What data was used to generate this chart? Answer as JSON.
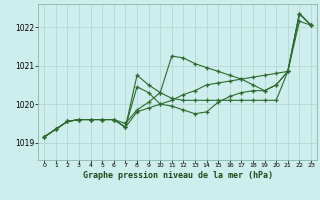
{
  "title": "Graphe pression niveau de la mer (hPa)",
  "background_color": "#ceeeed",
  "grid_color": "#b8dbd8",
  "line_color": "#2d6a2d",
  "xlim": [
    -0.5,
    23.5
  ],
  "ylim": [
    1018.55,
    1022.6
  ],
  "yticks": [
    1019,
    1020,
    1021,
    1022
  ],
  "xticks": [
    0,
    1,
    2,
    3,
    4,
    5,
    6,
    7,
    8,
    9,
    10,
    11,
    12,
    13,
    14,
    15,
    16,
    17,
    18,
    19,
    20,
    21,
    22,
    23
  ],
  "series": [
    {
      "x": [
        0,
        1,
        2,
        3,
        4,
        5,
        6,
        7,
        8,
        9,
        10,
        11,
        12,
        13,
        14,
        15,
        16,
        17,
        18,
        19,
        20,
        21,
        22,
        23
      ],
      "y": [
        1019.15,
        1019.35,
        1019.55,
        1019.6,
        1019.6,
        1019.6,
        1019.6,
        1019.5,
        1019.85,
        1020.05,
        1020.3,
        1021.25,
        1021.2,
        1021.05,
        1020.95,
        1020.85,
        1020.75,
        1020.65,
        1020.5,
        1020.35,
        1020.5,
        1020.85,
        1022.15,
        1022.05
      ]
    },
    {
      "x": [
        0,
        1,
        2,
        3,
        4,
        5,
        6,
        7,
        8,
        9,
        10,
        11,
        12,
        13,
        14,
        15,
        16,
        17,
        18,
        19,
        20,
        21,
        22,
        23
      ],
      "y": [
        1019.15,
        1019.35,
        1019.55,
        1019.6,
        1019.6,
        1019.6,
        1019.6,
        1019.4,
        1020.45,
        1020.3,
        1020.0,
        1019.95,
        1019.85,
        1019.75,
        1019.8,
        1020.05,
        1020.2,
        1020.3,
        1020.35,
        1020.35,
        1020.5,
        1020.85,
        1022.35,
        1022.05
      ]
    },
    {
      "x": [
        0,
        1,
        2,
        3,
        4,
        5,
        6,
        7,
        8,
        9,
        10,
        11,
        12,
        13,
        14,
        15,
        16,
        17,
        18,
        19,
        20,
        21,
        22,
        23
      ],
      "y": [
        1019.15,
        1019.35,
        1019.55,
        1019.6,
        1019.6,
        1019.6,
        1019.6,
        1019.4,
        1020.75,
        1020.5,
        1020.3,
        1020.15,
        1020.1,
        1020.1,
        1020.1,
        1020.1,
        1020.1,
        1020.1,
        1020.1,
        1020.1,
        1020.1,
        1020.85,
        1022.35,
        1022.05
      ]
    },
    {
      "x": [
        0,
        1,
        2,
        3,
        4,
        5,
        6,
        7,
        8,
        9,
        10,
        11,
        12,
        13,
        14,
        15,
        16,
        17,
        18,
        19,
        20,
        21,
        22,
        23
      ],
      "y": [
        1019.15,
        1019.35,
        1019.55,
        1019.6,
        1019.6,
        1019.6,
        1019.6,
        1019.4,
        1019.8,
        1019.9,
        1020.0,
        1020.1,
        1020.25,
        1020.35,
        1020.5,
        1020.55,
        1020.6,
        1020.65,
        1020.7,
        1020.75,
        1020.8,
        1020.85,
        1022.35,
        1022.05
      ]
    }
  ]
}
